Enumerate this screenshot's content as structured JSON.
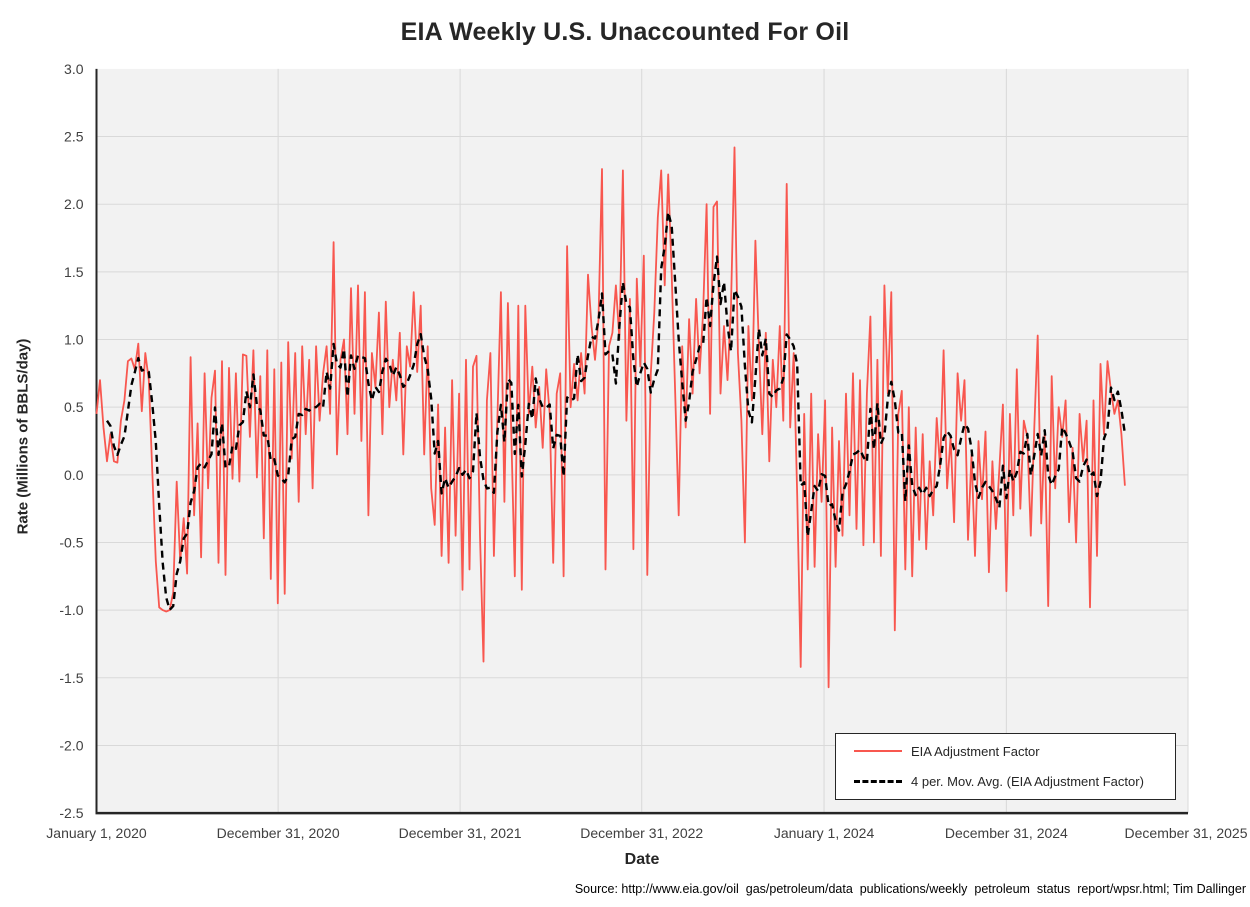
{
  "title": "EIA Weekly U.S. Unaccounted For Oil",
  "source_note": "Source: http://www.eia.gov/oil  gas/petroleum/data  publications/weekly  petroleum  status  report/wpsr.html; Tim Dallinger",
  "chart_data": {
    "type": "line",
    "title": "EIA Weekly U.S. Unaccounted For Oil",
    "xlabel": "Date",
    "ylabel": "Rate (Millions of BBLS/day)",
    "grid": true,
    "plot_background": "#F2F2F2",
    "gridline_color": "#D9D9D9",
    "axis_line_color": "#262626",
    "tick_label_color": "#404040",
    "ylim": [
      -2.5,
      3.0
    ],
    "y_ticks": [
      "3.0",
      "2.5",
      "2.0",
      "1.5",
      "1.0",
      "0.5",
      "0.0",
      "-0.5",
      "-1.0",
      "-1.5",
      "-2.0",
      "-2.5"
    ],
    "y_tick_values": [
      3.0,
      2.5,
      2.0,
      1.5,
      1.0,
      0.5,
      0.0,
      -0.5,
      -1.0,
      -1.5,
      -2.0,
      -2.5
    ],
    "x_unit": "weeks since January 1, 2020 (weekly observations)",
    "x_axis_range_weeks": [
      0,
      313.1
    ],
    "x_ticks": [
      {
        "label": "January 1, 2020",
        "week": 0
      },
      {
        "label": "December 31, 2020",
        "week": 52.1
      },
      {
        "label": "December 31, 2021",
        "week": 104.3
      },
      {
        "label": "December 31, 2022",
        "week": 156.4
      },
      {
        "label": "January 1, 2024",
        "week": 208.7
      },
      {
        "label": "December 31, 2024",
        "week": 261.0
      },
      {
        "label": "December 31, 2025",
        "week": 313.1
      }
    ],
    "legend_position": "bottom-right-inside",
    "series": [
      {
        "name": "EIA Adjustment Factor",
        "color": "#F8574F",
        "style": "solid",
        "values": [
          0.45,
          0.7,
          0.35,
          0.1,
          0.3,
          0.1,
          0.09,
          0.4,
          0.55,
          0.84,
          0.86,
          0.78,
          0.97,
          0.47,
          0.9,
          0.7,
          0.02,
          -0.64,
          -0.98,
          -1.0,
          -1.01,
          -1.0,
          -0.87,
          -0.05,
          -0.64,
          -0.32,
          -0.73,
          0.87,
          -0.3,
          0.38,
          -0.61,
          0.75,
          -0.1,
          0.57,
          0.77,
          -0.65,
          0.84,
          -0.74,
          0.79,
          -0.03,
          0.75,
          -0.05,
          0.89,
          0.88,
          0.28,
          0.92,
          -0.02,
          0.73,
          -0.47,
          0.92,
          -0.77,
          0.78,
          -0.95,
          0.83,
          -0.88,
          0.98,
          0.12,
          0.9,
          -0.2,
          0.95,
          0.3,
          0.85,
          -0.1,
          0.95,
          0.4,
          0.75,
          0.95,
          0.45,
          1.72,
          0.15,
          0.85,
          1.0,
          0.3,
          1.38,
          0.45,
          1.4,
          0.25,
          1.35,
          -0.3,
          0.9,
          0.65,
          1.2,
          0.3,
          1.28,
          0.5,
          0.85,
          0.55,
          1.05,
          0.15,
          0.95,
          0.8,
          1.35,
          0.76,
          1.25,
          0.15,
          0.95,
          -0.1,
          -0.37,
          0.52,
          -0.6,
          0.35,
          -0.65,
          0.7,
          -0.45,
          0.6,
          -0.85,
          0.85,
          -0.7,
          0.8,
          0.88,
          -0.45,
          -1.38,
          0.55,
          0.9,
          -0.6,
          0.42,
          1.35,
          -0.2,
          1.27,
          0.3,
          -0.75,
          1.25,
          -0.85,
          1.25,
          0.45,
          0.8,
          0.35,
          0.65,
          0.2,
          0.78,
          0.45,
          -0.65,
          0.6,
          0.75,
          -0.75,
          1.69,
          0.5,
          0.82,
          0.55,
          0.9,
          0.6,
          1.48,
          1.1,
          0.85,
          1.15,
          2.26,
          -0.7,
          0.95,
          1.05,
          1.4,
          1.0,
          2.25,
          0.4,
          1.3,
          -0.55,
          1.45,
          0.8,
          1.62,
          -0.74,
          0.75,
          1.2,
          1.9,
          2.25,
          1.4,
          2.22,
          1.48,
          0.6,
          -0.3,
          0.95,
          0.35,
          1.15,
          0.6,
          1.3,
          0.75,
          1.2,
          2.0,
          0.45,
          1.98,
          2.02,
          0.6,
          1.1,
          0.7,
          1.25,
          2.42,
          0.9,
          0.4,
          -0.5,
          1.1,
          0.55,
          1.73,
          0.95,
          0.3,
          1.05,
          0.1,
          0.85,
          0.5,
          1.1,
          0.4,
          2.15,
          0.35,
          0.9,
          -0.15,
          -1.42,
          0.45,
          -0.7,
          0.6,
          -0.68,
          0.3,
          -0.2,
          0.55,
          -1.57,
          0.35,
          -0.68,
          0.25,
          -0.45,
          0.6,
          -0.3,
          0.75,
          -0.4,
          0.7,
          -0.52,
          0.6,
          1.17,
          -0.5,
          0.85,
          -0.6,
          1.4,
          0.6,
          1.35,
          -1.15,
          0.45,
          0.62,
          -0.7,
          0.5,
          -0.75,
          0.35,
          -0.48,
          0.3,
          -0.55,
          0.1,
          -0.3,
          0.42,
          0.05,
          0.92,
          -0.1,
          0.28,
          -0.35,
          0.75,
          0.4,
          0.7,
          -0.48,
          0.15,
          -0.6,
          0.25,
          -0.18,
          0.32,
          -0.72,
          0.1,
          -0.4,
          0.05,
          0.52,
          -0.86,
          0.45,
          -0.3,
          0.78,
          -0.25,
          0.4,
          0.28,
          -0.45,
          0.35,
          1.03,
          -0.36,
          0.3,
          -0.97,
          0.73,
          -0.1,
          0.5,
          0.28,
          0.55,
          -0.35,
          0.2,
          -0.5,
          0.45,
          0.1,
          0.4,
          -0.98,
          0.55,
          -0.6,
          0.82,
          0.3,
          0.84,
          0.62,
          0.45,
          0.55,
          0.3,
          -0.08
        ]
      },
      {
        "name": "4 per. Mov. Avg. (EIA Adjustment Factor)",
        "color": "#000000",
        "style": "dashed",
        "derivation": "4-period trailing moving average of EIA Adjustment Factor"
      }
    ]
  },
  "legend": {
    "entries": [
      {
        "label": "EIA Adjustment Factor"
      },
      {
        "label": "4 per. Mov. Avg. (EIA Adjustment Factor)"
      }
    ]
  },
  "axis_titles": {
    "x": "Date",
    "y": "Rate (Millions of BBLS/day)"
  }
}
